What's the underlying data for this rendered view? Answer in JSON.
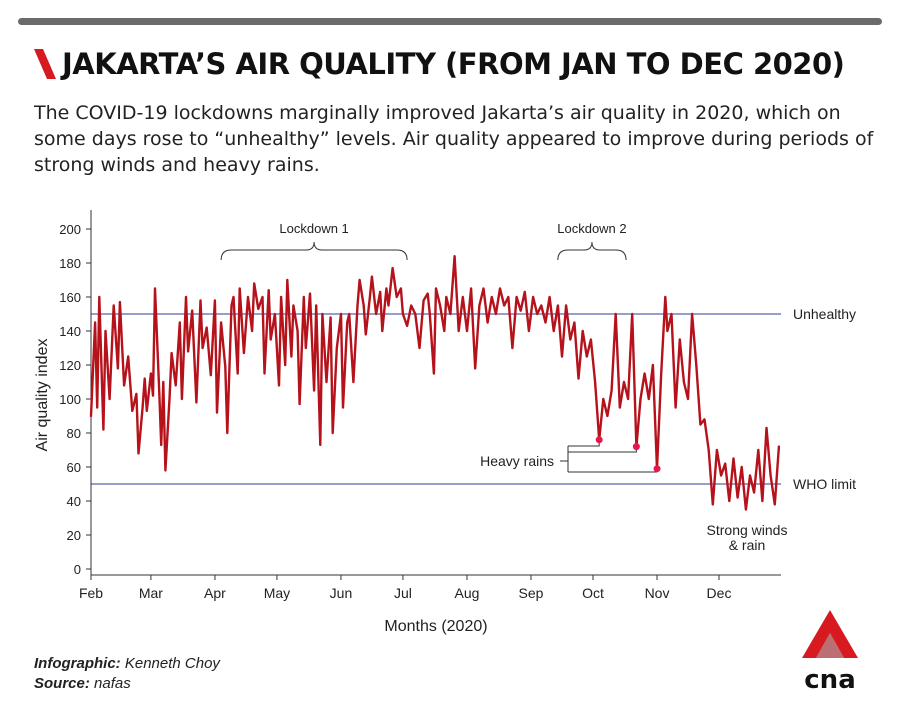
{
  "header": {
    "title": "JAKARTA’S AIR QUALITY (FROM JAN TO DEC 2020)",
    "subtitle": "The COVID-19 lockdowns marginally improved Jakarta’s air quality in 2020, which on some days rose to “unhealthy” levels. Air quality appeared to improve during periods of strong winds and heavy rains."
  },
  "footer": {
    "infographic_label": "Infographic:",
    "infographic_value": "Kenneth Choy",
    "source_label": "Source:",
    "source_value": "nafas",
    "logo_text": "cna"
  },
  "colors": {
    "line": "#b5121b",
    "marker": "#e8174b",
    "reference": "#2e3f8f",
    "brand": "#d71920"
  },
  "chart_data": {
    "type": "line",
    "xlabel": "Months (2020)",
    "ylabel": "Air quality index",
    "ylim": [
      0,
      210
    ],
    "yticks": [
      0,
      20,
      40,
      60,
      80,
      100,
      120,
      140,
      160,
      180,
      200
    ],
    "xlim": [
      "2020-02-01",
      "2020-12-31"
    ],
    "month_ticks": [
      {
        "label": "Feb",
        "date": "2020-02-01"
      },
      {
        "label": "Mar",
        "date": "2020-03-01"
      },
      {
        "label": "Apr",
        "date": "2020-04-01"
      },
      {
        "label": "May",
        "date": "2020-05-01"
      },
      {
        "label": "Jun",
        "date": "2020-06-01"
      },
      {
        "label": "Jul",
        "date": "2020-07-01"
      },
      {
        "label": "Aug",
        "date": "2020-08-01"
      },
      {
        "label": "Sep",
        "date": "2020-09-01"
      },
      {
        "label": "Oct",
        "date": "2020-10-01"
      },
      {
        "label": "Nov",
        "date": "2020-11-01"
      },
      {
        "label": "Dec",
        "date": "2020-12-01"
      }
    ],
    "reference_lines": [
      {
        "label": "Unhealthy",
        "value": 150
      },
      {
        "label": "WHO limit",
        "value": 50
      }
    ],
    "annotations": [
      {
        "label": "Lockdown 1",
        "start": "2020-04-04",
        "end": "2020-07-03"
      },
      {
        "label": "Lockdown 2",
        "start": "2020-09-14",
        "end": "2020-10-17"
      }
    ],
    "callouts": {
      "heavy_rains": {
        "label": "Heavy rains",
        "points": [
          {
            "date": "2020-10-04",
            "value": 76
          },
          {
            "date": "2020-10-22",
            "value": 72
          },
          {
            "date": "2020-11-01",
            "value": 59
          }
        ]
      },
      "strong_winds": {
        "label": "Strong winds\n& rain"
      }
    },
    "series": [
      {
        "points": [
          [
            "2020-02-01",
            90
          ],
          [
            "2020-02-03",
            145
          ],
          [
            "2020-02-04",
            95
          ],
          [
            "2020-02-05",
            160
          ],
          [
            "2020-02-07",
            82
          ],
          [
            "2020-02-08",
            140
          ],
          [
            "2020-02-10",
            100
          ],
          [
            "2020-02-12",
            155
          ],
          [
            "2020-02-14",
            118
          ],
          [
            "2020-02-15",
            157
          ],
          [
            "2020-02-17",
            108
          ],
          [
            "2020-02-19",
            125
          ],
          [
            "2020-02-21",
            93
          ],
          [
            "2020-02-23",
            103
          ],
          [
            "2020-02-24",
            68
          ],
          [
            "2020-02-26",
            95
          ],
          [
            "2020-02-27",
            112
          ],
          [
            "2020-02-28",
            93
          ],
          [
            "2020-03-01",
            115
          ],
          [
            "2020-03-02",
            102
          ],
          [
            "2020-03-03",
            165
          ],
          [
            "2020-03-05",
            105
          ],
          [
            "2020-03-06",
            73
          ],
          [
            "2020-03-07",
            110
          ],
          [
            "2020-03-08",
            58
          ],
          [
            "2020-03-10",
            100
          ],
          [
            "2020-03-11",
            127
          ],
          [
            "2020-03-13",
            108
          ],
          [
            "2020-03-15",
            145
          ],
          [
            "2020-03-16",
            100
          ],
          [
            "2020-03-18",
            160
          ],
          [
            "2020-03-19",
            128
          ],
          [
            "2020-03-21",
            152
          ],
          [
            "2020-03-23",
            98
          ],
          [
            "2020-03-25",
            158
          ],
          [
            "2020-03-26",
            130
          ],
          [
            "2020-03-28",
            142
          ],
          [
            "2020-03-30",
            114
          ],
          [
            "2020-04-01",
            158
          ],
          [
            "2020-04-02",
            92
          ],
          [
            "2020-04-04",
            145
          ],
          [
            "2020-04-06",
            119
          ],
          [
            "2020-04-07",
            80
          ],
          [
            "2020-04-09",
            155
          ],
          [
            "2020-04-10",
            160
          ],
          [
            "2020-04-12",
            115
          ],
          [
            "2020-04-13",
            165
          ],
          [
            "2020-04-15",
            127
          ],
          [
            "2020-04-17",
            160
          ],
          [
            "2020-04-19",
            140
          ],
          [
            "2020-04-20",
            168
          ],
          [
            "2020-04-22",
            153
          ],
          [
            "2020-04-24",
            160
          ],
          [
            "2020-04-25",
            115
          ],
          [
            "2020-04-27",
            164
          ],
          [
            "2020-04-28",
            135
          ],
          [
            "2020-04-30",
            150
          ],
          [
            "2020-05-02",
            108
          ],
          [
            "2020-05-03",
            160
          ],
          [
            "2020-05-05",
            120
          ],
          [
            "2020-05-06",
            170
          ],
          [
            "2020-05-08",
            125
          ],
          [
            "2020-05-09",
            155
          ],
          [
            "2020-05-11",
            140
          ],
          [
            "2020-05-12",
            97
          ],
          [
            "2020-05-14",
            160
          ],
          [
            "2020-05-15",
            130
          ],
          [
            "2020-05-17",
            162
          ],
          [
            "2020-05-19",
            105
          ],
          [
            "2020-05-20",
            155
          ],
          [
            "2020-05-22",
            73
          ],
          [
            "2020-05-23",
            150
          ],
          [
            "2020-05-25",
            110
          ],
          [
            "2020-05-27",
            148
          ],
          [
            "2020-05-28",
            80
          ],
          [
            "2020-05-30",
            130
          ],
          [
            "2020-06-01",
            150
          ],
          [
            "2020-06-02",
            95
          ],
          [
            "2020-06-04",
            145
          ],
          [
            "2020-06-05",
            150
          ],
          [
            "2020-06-07",
            110
          ],
          [
            "2020-06-09",
            155
          ],
          [
            "2020-06-10",
            170
          ],
          [
            "2020-06-12",
            155
          ],
          [
            "2020-06-13",
            138
          ],
          [
            "2020-06-15",
            160
          ],
          [
            "2020-06-16",
            172
          ],
          [
            "2020-06-18",
            150
          ],
          [
            "2020-06-20",
            163
          ],
          [
            "2020-06-21",
            140
          ],
          [
            "2020-06-23",
            165
          ],
          [
            "2020-06-24",
            155
          ],
          [
            "2020-06-26",
            177
          ],
          [
            "2020-06-28",
            160
          ],
          [
            "2020-06-30",
            165
          ],
          [
            "2020-07-01",
            150
          ],
          [
            "2020-07-03",
            143
          ],
          [
            "2020-07-05",
            155
          ],
          [
            "2020-07-07",
            150
          ],
          [
            "2020-07-09",
            130
          ],
          [
            "2020-07-11",
            158
          ],
          [
            "2020-07-13",
            162
          ],
          [
            "2020-07-14",
            150
          ],
          [
            "2020-07-16",
            115
          ],
          [
            "2020-07-17",
            165
          ],
          [
            "2020-07-19",
            155
          ],
          [
            "2020-07-21",
            140
          ],
          [
            "2020-07-22",
            160
          ],
          [
            "2020-07-24",
            150
          ],
          [
            "2020-07-26",
            184
          ],
          [
            "2020-07-28",
            140
          ],
          [
            "2020-07-30",
            160
          ],
          [
            "2020-08-01",
            140
          ],
          [
            "2020-08-03",
            165
          ],
          [
            "2020-08-05",
            118
          ],
          [
            "2020-08-07",
            155
          ],
          [
            "2020-08-09",
            165
          ],
          [
            "2020-08-11",
            145
          ],
          [
            "2020-08-13",
            160
          ],
          [
            "2020-08-15",
            150
          ],
          [
            "2020-08-17",
            165
          ],
          [
            "2020-08-19",
            155
          ],
          [
            "2020-08-21",
            160
          ],
          [
            "2020-08-23",
            130
          ],
          [
            "2020-08-25",
            160
          ],
          [
            "2020-08-27",
            152
          ],
          [
            "2020-08-29",
            163
          ],
          [
            "2020-08-31",
            140
          ],
          [
            "2020-09-02",
            160
          ],
          [
            "2020-09-04",
            150
          ],
          [
            "2020-09-06",
            155
          ],
          [
            "2020-09-08",
            145
          ],
          [
            "2020-09-10",
            160
          ],
          [
            "2020-09-12",
            140
          ],
          [
            "2020-09-14",
            155
          ],
          [
            "2020-09-16",
            125
          ],
          [
            "2020-09-18",
            155
          ],
          [
            "2020-09-20",
            135
          ],
          [
            "2020-09-22",
            145
          ],
          [
            "2020-09-24",
            112
          ],
          [
            "2020-09-26",
            140
          ],
          [
            "2020-09-28",
            125
          ],
          [
            "2020-09-30",
            135
          ],
          [
            "2020-10-02",
            110
          ],
          [
            "2020-10-04",
            76
          ],
          [
            "2020-10-06",
            100
          ],
          [
            "2020-10-08",
            90
          ],
          [
            "2020-10-10",
            105
          ],
          [
            "2020-10-12",
            150
          ],
          [
            "2020-10-14",
            95
          ],
          [
            "2020-10-16",
            110
          ],
          [
            "2020-10-18",
            100
          ],
          [
            "2020-10-20",
            150
          ],
          [
            "2020-10-22",
            72
          ],
          [
            "2020-10-24",
            100
          ],
          [
            "2020-10-26",
            115
          ],
          [
            "2020-10-28",
            100
          ],
          [
            "2020-10-30",
            120
          ],
          [
            "2020-11-01",
            59
          ],
          [
            "2020-11-03",
            115
          ],
          [
            "2020-11-05",
            160
          ],
          [
            "2020-11-06",
            140
          ],
          [
            "2020-11-08",
            150
          ],
          [
            "2020-11-10",
            95
          ],
          [
            "2020-11-12",
            135
          ],
          [
            "2020-11-14",
            110
          ],
          [
            "2020-11-16",
            100
          ],
          [
            "2020-11-18",
            150
          ],
          [
            "2020-11-20",
            120
          ],
          [
            "2020-11-22",
            85
          ],
          [
            "2020-11-24",
            88
          ],
          [
            "2020-11-26",
            70
          ],
          [
            "2020-11-28",
            38
          ],
          [
            "2020-11-30",
            70
          ],
          [
            "2020-12-02",
            55
          ],
          [
            "2020-12-04",
            62
          ],
          [
            "2020-12-06",
            40
          ],
          [
            "2020-12-08",
            65
          ],
          [
            "2020-12-10",
            42
          ],
          [
            "2020-12-12",
            60
          ],
          [
            "2020-12-14",
            35
          ],
          [
            "2020-12-16",
            55
          ],
          [
            "2020-12-18",
            45
          ],
          [
            "2020-12-20",
            70
          ],
          [
            "2020-12-22",
            40
          ],
          [
            "2020-12-24",
            83
          ],
          [
            "2020-12-26",
            55
          ],
          [
            "2020-12-28",
            38
          ],
          [
            "2020-12-30",
            72
          ]
        ]
      }
    ]
  }
}
